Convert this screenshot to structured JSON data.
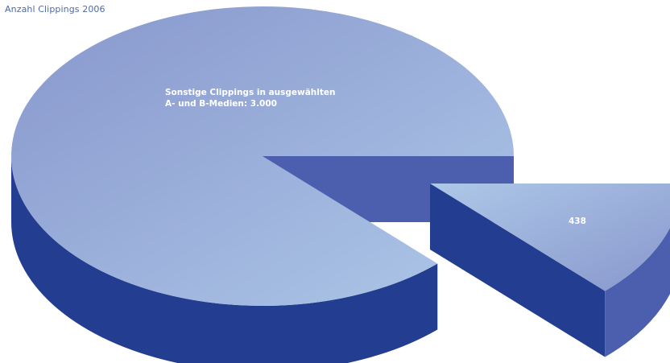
{
  "chart_data": {
    "type": "pie",
    "title": "Anzahl Clippings 2006",
    "slices": [
      {
        "label": "Sonstige Clippings in ausgewählten A- und B-Medien: 3.000",
        "value": 3000,
        "label_lines": [
          "Sonstige Clippings in ausgewählten",
          "A- und B-Medien: 3.000"
        ]
      },
      {
        "label": "438",
        "value": 438,
        "exploded": true,
        "label_lines": [
          "438"
        ]
      }
    ],
    "style": "3d-exploded",
    "colors": {
      "top_light": "#aec8e8",
      "top_dark": "#8796cc",
      "side_dark": "#233d91",
      "side_mid": "#4b5fae",
      "label": "#ffffff",
      "title": "#4c6aa8"
    }
  }
}
